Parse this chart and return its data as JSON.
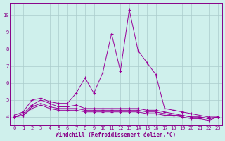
{
  "xlabel": "Windchill (Refroidissement éolien,°C)",
  "x": [
    0,
    1,
    2,
    3,
    4,
    5,
    6,
    7,
    8,
    9,
    10,
    11,
    12,
    13,
    14,
    15,
    16,
    17,
    18,
    19,
    20,
    21,
    22,
    23
  ],
  "series": [
    [
      4.1,
      4.3,
      5.0,
      5.1,
      4.9,
      4.8,
      4.8,
      5.4,
      6.3,
      5.4,
      6.6,
      8.9,
      6.7,
      10.3,
      7.9,
      7.2,
      6.5,
      4.5,
      4.4,
      4.3,
      4.2,
      4.1,
      4.0,
      4.0
    ],
    [
      4.0,
      4.2,
      4.7,
      5.0,
      4.8,
      4.6,
      4.6,
      4.7,
      4.5,
      4.5,
      4.5,
      4.5,
      4.5,
      4.5,
      4.5,
      4.4,
      4.4,
      4.3,
      4.2,
      4.1,
      4.0,
      4.0,
      3.9,
      4.0
    ],
    [
      4.0,
      4.1,
      4.6,
      4.8,
      4.6,
      4.5,
      4.5,
      4.5,
      4.4,
      4.4,
      4.4,
      4.4,
      4.4,
      4.4,
      4.4,
      4.3,
      4.3,
      4.2,
      4.1,
      4.1,
      4.0,
      4.0,
      3.9,
      4.0
    ],
    [
      4.0,
      4.1,
      4.5,
      4.7,
      4.5,
      4.4,
      4.4,
      4.4,
      4.3,
      4.3,
      4.3,
      4.3,
      4.3,
      4.3,
      4.3,
      4.2,
      4.2,
      4.1,
      4.1,
      4.0,
      3.9,
      3.9,
      3.8,
      4.0
    ]
  ],
  "line_color": "#990099",
  "bg_color": "#cff0ec",
  "grid_color": "#aacccc",
  "axis_color": "#880088",
  "ylim": [
    3.5,
    10.7
  ],
  "xlim": [
    -0.5,
    23.5
  ],
  "yticks": [
    4,
    5,
    6,
    7,
    8,
    9,
    10
  ],
  "xticks": [
    0,
    1,
    2,
    3,
    4,
    5,
    6,
    7,
    8,
    9,
    10,
    11,
    12,
    13,
    14,
    15,
    16,
    17,
    18,
    19,
    20,
    21,
    22,
    23
  ]
}
